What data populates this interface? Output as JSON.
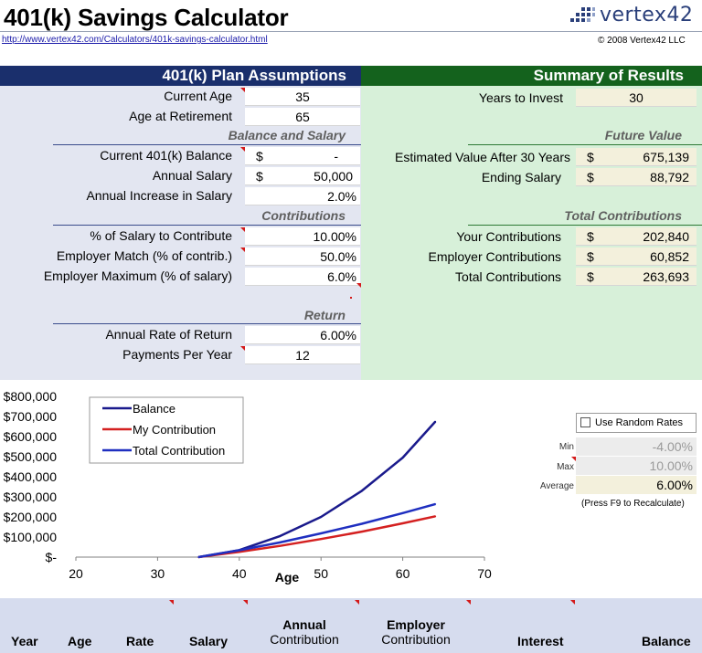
{
  "header": {
    "title": "401(k) Savings Calculator",
    "logo_text": "vertex42",
    "url": "http://www.vertex42.com/Calculators/401k-savings-calculator.html",
    "copyright": "© 2008 Vertex42 LLC"
  },
  "assumptions": {
    "title": "401(k) Plan Assumptions",
    "current_age_label": "Current Age",
    "current_age": "35",
    "retirement_age_label": "Age at Retirement",
    "retirement_age": "65",
    "balance_section": "Balance and Salary",
    "balance_label": "Current 401(k) Balance",
    "balance_currency": "$",
    "balance_value": "-",
    "salary_label": "Annual Salary",
    "salary_currency": "$",
    "salary_value": "50,000",
    "increase_label": "Annual Increase in Salary",
    "increase_value": "2.0%",
    "contrib_section": "Contributions",
    "pct_contrib_label": "% of Salary to Contribute",
    "pct_contrib_value": "10.00%",
    "match_label": "Employer Match (% of contrib.)",
    "match_value": "50.0%",
    "max_label": "Employer Maximum (% of salary)",
    "max_value": "6.0%",
    "return_section": "Return",
    "rate_label": "Annual Rate of Return",
    "rate_value": "6.00%",
    "payments_label": "Payments Per Year",
    "payments_value": "12"
  },
  "summary": {
    "title": "Summary of Results",
    "years_label": "Years to Invest",
    "years_value": "30",
    "fv_section": "Future Value",
    "est_label": "Estimated Value After 30 Years",
    "est_currency": "$",
    "est_value": "675,139",
    "ending_label": "Ending Salary",
    "ending_currency": "$",
    "ending_value": "88,792",
    "tc_section": "Total Contributions",
    "your_label": "Your Contributions",
    "your_currency": "$",
    "your_value": "202,840",
    "employer_label": "Employer Contributions",
    "employer_currency": "$",
    "employer_value": "60,852",
    "total_label": "Total Contributions",
    "total_currency": "$",
    "total_value": "263,693"
  },
  "random_rates": {
    "checkbox_label": "Use Random Rates",
    "checked": false,
    "min_label": "Min",
    "min_value": "-4.00%",
    "max_label": "Max",
    "max_value": "10.00%",
    "avg_label": "Average",
    "avg_value": "6.00%",
    "note": "(Press F9 to Recalculate)"
  },
  "table": {
    "col_year": "Year",
    "col_age": "Age",
    "col_rate": "Rate",
    "col_salary": "Salary",
    "col_annual_top": "Annual",
    "col_annual_bottom": "Contribution",
    "col_employer_top": "Employer",
    "col_employer_bottom": "Contribution",
    "col_interest": "Interest",
    "col_balance": "Balance"
  },
  "colors": {
    "balance_line": "#1a1a8c",
    "my_contribution_line": "#d42020",
    "total_contribution_line": "#1f2fc0"
  },
  "chart_data": {
    "type": "line",
    "title": "",
    "xlabel": "Age",
    "ylabel": "",
    "xlim": [
      20,
      70
    ],
    "ylim": [
      0,
      800000
    ],
    "xticks": [
      20,
      30,
      40,
      50,
      60,
      70
    ],
    "yticks": [
      0,
      100000,
      200000,
      300000,
      400000,
      500000,
      600000,
      700000,
      800000
    ],
    "ytick_labels": [
      "$-",
      "$100,000",
      "$200,000",
      "$300,000",
      "$400,000",
      "$500,000",
      "$600,000",
      "$700,000",
      "$800,000"
    ],
    "legend": [
      "Balance",
      "My Contribution",
      "Total Contribution"
    ],
    "legend_position": "top-left",
    "series": [
      {
        "name": "Balance",
        "x": [
          35,
          40,
          45,
          50,
          55,
          60,
          64
        ],
        "values": [
          0,
          35000,
          105000,
          200000,
          330000,
          495000,
          675000
        ]
      },
      {
        "name": "My Contribution",
        "x": [
          35,
          40,
          45,
          50,
          55,
          60,
          64
        ],
        "values": [
          0,
          26000,
          56000,
          90000,
          127000,
          168000,
          203000
        ]
      },
      {
        "name": "Total Contribution",
        "x": [
          35,
          40,
          45,
          50,
          55,
          60,
          64
        ],
        "values": [
          0,
          34000,
          73000,
          118000,
          166000,
          219000,
          264000
        ]
      }
    ]
  }
}
